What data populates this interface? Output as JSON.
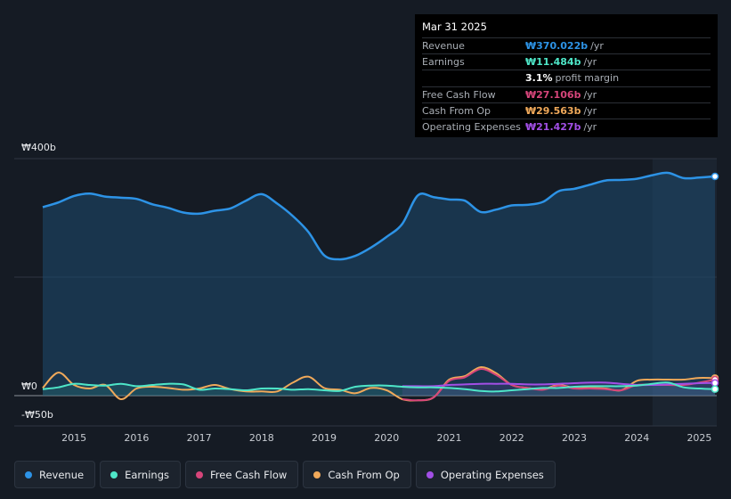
{
  "tooltip": {
    "date": "Mar 31 2025",
    "rows": [
      {
        "label": "Revenue",
        "value": "₩370.022b",
        "unit": "/yr",
        "color": "#2d93e6"
      },
      {
        "label": "Earnings",
        "value": "₩11.484b",
        "unit": "/yr",
        "color": "#4ee6c8"
      },
      {
        "label": "",
        "value": "3.1%",
        "unit": "profit margin",
        "color": "#ffffff"
      },
      {
        "label": "Free Cash Flow",
        "value": "₩27.106b",
        "unit": "/yr",
        "color": "#d6457a"
      },
      {
        "label": "Cash From Op",
        "value": "₩29.563b",
        "unit": "/yr",
        "color": "#f0a95a"
      },
      {
        "label": "Operating Expenses",
        "value": "₩21.427b",
        "unit": "/yr",
        "color": "#a24fe6"
      }
    ]
  },
  "legend": [
    {
      "label": "Revenue",
      "color": "#2d93e6"
    },
    {
      "label": "Earnings",
      "color": "#4ee6c8"
    },
    {
      "label": "Free Cash Flow",
      "color": "#d6457a"
    },
    {
      "label": "Cash From Op",
      "color": "#f0a95a"
    },
    {
      "label": "Operating Expenses",
      "color": "#a24fe6"
    }
  ],
  "chart_data": {
    "type": "area",
    "y_tick_labels": [
      "₩400b",
      "₩0",
      "-₩50b"
    ],
    "ylim": [
      -50,
      400
    ],
    "xlim": [
      2014.5,
      2025.25
    ],
    "x_tick_labels": [
      "2015",
      "2016",
      "2017",
      "2018",
      "2019",
      "2020",
      "2021",
      "2022",
      "2023",
      "2024",
      "2025"
    ],
    "x_ticks": [
      2015,
      2016,
      2017,
      2018,
      2019,
      2020,
      2021,
      2022,
      2023,
      2024,
      2025
    ],
    "grid": true,
    "forecast_shade_start": 2024.25,
    "series": [
      {
        "name": "Revenue",
        "color": "#2d93e6",
        "fill": true,
        "points": [
          [
            2014.5,
            318
          ],
          [
            2014.75,
            326
          ],
          [
            2015.0,
            337
          ],
          [
            2015.25,
            341
          ],
          [
            2015.5,
            336
          ],
          [
            2015.75,
            334
          ],
          [
            2016.0,
            332
          ],
          [
            2016.25,
            323
          ],
          [
            2016.5,
            317
          ],
          [
            2016.75,
            309
          ],
          [
            2017.0,
            307
          ],
          [
            2017.25,
            312
          ],
          [
            2017.5,
            316
          ],
          [
            2017.75,
            329
          ],
          [
            2018.0,
            340
          ],
          [
            2018.25,
            324
          ],
          [
            2018.5,
            303
          ],
          [
            2018.75,
            276
          ],
          [
            2019.0,
            237
          ],
          [
            2019.25,
            230
          ],
          [
            2019.5,
            236
          ],
          [
            2019.75,
            250
          ],
          [
            2020.0,
            268
          ],
          [
            2020.25,
            290
          ],
          [
            2020.5,
            338
          ],
          [
            2020.75,
            335
          ],
          [
            2021.0,
            331
          ],
          [
            2021.25,
            329
          ],
          [
            2021.5,
            310
          ],
          [
            2021.75,
            314
          ],
          [
            2022.0,
            321
          ],
          [
            2022.25,
            322
          ],
          [
            2022.5,
            327
          ],
          [
            2022.75,
            345
          ],
          [
            2023.0,
            349
          ],
          [
            2023.25,
            356
          ],
          [
            2023.5,
            363
          ],
          [
            2023.75,
            364
          ],
          [
            2024.0,
            366
          ],
          [
            2024.25,
            372
          ],
          [
            2024.5,
            376
          ],
          [
            2024.75,
            367
          ],
          [
            2025.0,
            368
          ],
          [
            2025.25,
            370
          ]
        ]
      },
      {
        "name": "Earnings",
        "color": "#4ee6c8",
        "fill": false,
        "points": [
          [
            2014.5,
            11
          ],
          [
            2014.75,
            14
          ],
          [
            2015.0,
            20
          ],
          [
            2015.25,
            18
          ],
          [
            2015.5,
            17
          ],
          [
            2015.75,
            20
          ],
          [
            2016.0,
            16
          ],
          [
            2016.25,
            18
          ],
          [
            2016.5,
            20
          ],
          [
            2016.75,
            19
          ],
          [
            2017.0,
            10
          ],
          [
            2017.25,
            12
          ],
          [
            2017.5,
            11
          ],
          [
            2017.75,
            9
          ],
          [
            2018.0,
            12
          ],
          [
            2018.25,
            12
          ],
          [
            2018.5,
            10
          ],
          [
            2018.75,
            11
          ],
          [
            2019.0,
            9
          ],
          [
            2019.25,
            8
          ],
          [
            2019.5,
            15
          ],
          [
            2019.75,
            17
          ],
          [
            2020.0,
            17
          ],
          [
            2020.25,
            15
          ],
          [
            2020.5,
            14
          ],
          [
            2020.75,
            14
          ],
          [
            2021.0,
            13
          ],
          [
            2021.25,
            11
          ],
          [
            2021.5,
            8
          ],
          [
            2021.75,
            7
          ],
          [
            2022.0,
            9
          ],
          [
            2022.25,
            11
          ],
          [
            2022.5,
            13
          ],
          [
            2022.75,
            13
          ],
          [
            2023.0,
            15
          ],
          [
            2023.25,
            16
          ],
          [
            2023.5,
            16
          ],
          [
            2023.75,
            16
          ],
          [
            2024.0,
            17
          ],
          [
            2024.25,
            20
          ],
          [
            2024.5,
            22
          ],
          [
            2024.75,
            14
          ],
          [
            2025.0,
            12
          ],
          [
            2025.25,
            11
          ]
        ]
      },
      {
        "name": "Free Cash Flow",
        "color": "#d6457a",
        "fill": false,
        "points": [
          [
            2020.25,
            -6
          ],
          [
            2020.5,
            -8
          ],
          [
            2020.75,
            -3
          ],
          [
            2021.0,
            25
          ],
          [
            2021.25,
            31
          ],
          [
            2021.5,
            45
          ],
          [
            2021.75,
            35
          ],
          [
            2022.0,
            18
          ],
          [
            2022.25,
            13
          ],
          [
            2022.5,
            10
          ],
          [
            2022.75,
            17
          ],
          [
            2023.0,
            12
          ],
          [
            2023.25,
            12
          ],
          [
            2023.5,
            11
          ],
          [
            2023.75,
            9
          ],
          [
            2024.0,
            18
          ],
          [
            2024.25,
            18
          ],
          [
            2024.5,
            18
          ],
          [
            2024.75,
            18
          ],
          [
            2025.0,
            22
          ],
          [
            2025.25,
            27
          ]
        ]
      },
      {
        "name": "Cash From Op",
        "color": "#f0a95a",
        "fill": false,
        "points": [
          [
            2014.5,
            13
          ],
          [
            2014.75,
            39
          ],
          [
            2015.0,
            18
          ],
          [
            2015.25,
            12
          ],
          [
            2015.5,
            18
          ],
          [
            2015.75,
            -6
          ],
          [
            2016.0,
            12
          ],
          [
            2016.25,
            15
          ],
          [
            2016.5,
            13
          ],
          [
            2016.75,
            10
          ],
          [
            2017.0,
            12
          ],
          [
            2017.25,
            18
          ],
          [
            2017.5,
            11
          ],
          [
            2017.75,
            7
          ],
          [
            2018.0,
            7
          ],
          [
            2018.25,
            7
          ],
          [
            2018.5,
            22
          ],
          [
            2018.75,
            32
          ],
          [
            2019.0,
            13
          ],
          [
            2019.25,
            10
          ],
          [
            2019.5,
            4
          ],
          [
            2019.75,
            13
          ],
          [
            2020.0,
            9
          ],
          [
            2020.25,
            -6
          ],
          [
            2020.5,
            -8
          ],
          [
            2020.75,
            -3
          ],
          [
            2021.0,
            27
          ],
          [
            2021.25,
            33
          ],
          [
            2021.5,
            48
          ],
          [
            2021.75,
            38
          ],
          [
            2022.0,
            18
          ],
          [
            2022.25,
            13
          ],
          [
            2022.5,
            11
          ],
          [
            2022.75,
            18
          ],
          [
            2023.0,
            13
          ],
          [
            2023.25,
            13
          ],
          [
            2023.5,
            12
          ],
          [
            2023.75,
            9
          ],
          [
            2024.0,
            25
          ],
          [
            2024.25,
            27
          ],
          [
            2024.5,
            27
          ],
          [
            2024.75,
            27
          ],
          [
            2025.0,
            30
          ],
          [
            2025.25,
            29.6
          ]
        ]
      },
      {
        "name": "Operating Expenses",
        "color": "#a24fe6",
        "fill": false,
        "points": [
          [
            2020.25,
            16
          ],
          [
            2020.5,
            16
          ],
          [
            2020.75,
            16
          ],
          [
            2021.0,
            18
          ],
          [
            2021.25,
            19
          ],
          [
            2021.5,
            20
          ],
          [
            2021.75,
            20
          ],
          [
            2022.0,
            20
          ],
          [
            2022.25,
            19
          ],
          [
            2022.5,
            19
          ],
          [
            2022.75,
            20
          ],
          [
            2023.0,
            21
          ],
          [
            2023.25,
            22
          ],
          [
            2023.5,
            22
          ],
          [
            2023.75,
            20
          ],
          [
            2024.0,
            18
          ],
          [
            2024.25,
            18
          ],
          [
            2024.5,
            19
          ],
          [
            2024.75,
            20
          ],
          [
            2025.0,
            21
          ],
          [
            2025.25,
            21.4
          ]
        ]
      }
    ]
  }
}
